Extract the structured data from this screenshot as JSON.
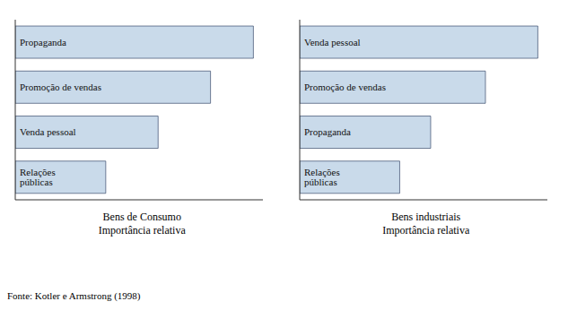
{
  "chart_data": [
    {
      "type": "bar",
      "orientation": "horizontal",
      "title": "Bens de Consumo\nImportância relativa",
      "categories": [
        "Propaganda",
        "Promoção de vendas",
        "Venda pessoal",
        "Relações públicas"
      ],
      "values": [
        1.0,
        0.82,
        0.6,
        0.38
      ],
      "color": "#c9daea",
      "xlim": [
        0,
        1.04
      ],
      "tick_labels": false,
      "data_labels": false,
      "grid": false,
      "annotations": [
        "Fonte: Kotler e Armstrong (1998)"
      ]
    },
    {
      "type": "bar",
      "orientation": "horizontal",
      "title": "Bens industriais\nImportância relativa",
      "categories": [
        "Venda pessoal",
        "Promoção de vendas",
        "Propaganda",
        "Relações públicas"
      ],
      "values": [
        1.0,
        0.78,
        0.55,
        0.42
      ],
      "color": "#c9daea",
      "xlim": [
        0,
        1.04
      ],
      "tick_labels": false,
      "data_labels": false,
      "grid": false
    }
  ]
}
